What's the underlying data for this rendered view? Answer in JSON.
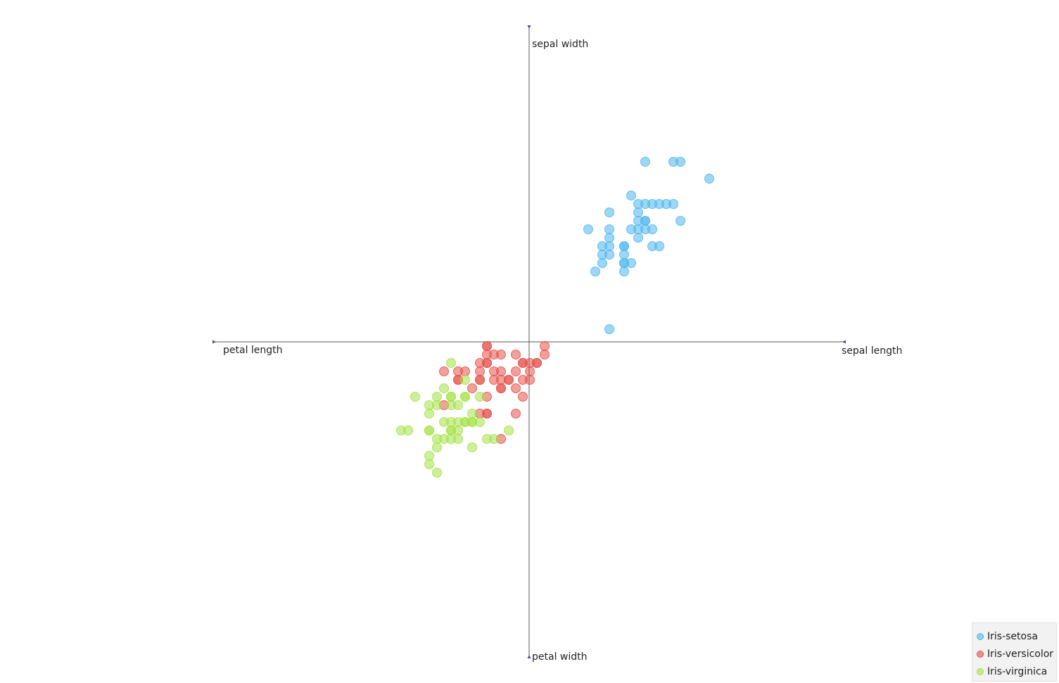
{
  "chart_data": {
    "type": "scatter",
    "title": "",
    "axes": [
      {
        "name": "sepal width",
        "direction": "up"
      },
      {
        "name": "petal width",
        "direction": "down"
      },
      {
        "name": "petal length",
        "direction": "left"
      },
      {
        "name": "sepal length",
        "direction": "right"
      }
    ],
    "series": [
      {
        "name": "Iris-setosa",
        "color": "#4fb7ee",
        "points": [
          [
            165,
            256
          ],
          [
            205,
            256
          ],
          [
            215,
            256
          ],
          [
            256,
            232
          ],
          [
            145,
            208
          ],
          [
            155,
            196
          ],
          [
            165,
            196
          ],
          [
            175,
            196
          ],
          [
            185,
            196
          ],
          [
            195,
            196
          ],
          [
            205,
            196
          ],
          [
            114,
            184
          ],
          [
            155,
            184
          ],
          [
            155,
            172
          ],
          [
            165,
            172
          ],
          [
            165,
            172
          ],
          [
            215,
            172
          ],
          [
            84,
            160
          ],
          [
            114,
            160
          ],
          [
            145,
            160
          ],
          [
            155,
            160
          ],
          [
            165,
            160
          ],
          [
            175,
            160
          ],
          [
            155,
            148
          ],
          [
            114,
            148
          ],
          [
            104,
            136
          ],
          [
            114,
            136
          ],
          [
            135,
            136
          ],
          [
            135,
            136
          ],
          [
            175,
            136
          ],
          [
            185,
            136
          ],
          [
            104,
            124
          ],
          [
            114,
            124
          ],
          [
            135,
            124
          ],
          [
            104,
            112
          ],
          [
            135,
            112
          ],
          [
            135,
            112
          ],
          [
            145,
            112
          ],
          [
            94,
            100
          ],
          [
            135,
            100
          ],
          [
            114,
            18
          ]
        ]
      },
      {
        "name": "Iris-versicolor",
        "color": "#e5524a",
        "points": [
          [
            -60,
            -6
          ],
          [
            -60,
            -6
          ],
          [
            22,
            -6
          ],
          [
            -60,
            -18
          ],
          [
            -50,
            -18
          ],
          [
            -40,
            -18
          ],
          [
            -19,
            -18
          ],
          [
            22,
            -18
          ],
          [
            -60,
            -30
          ],
          [
            -60,
            -30
          ],
          [
            -70,
            -30
          ],
          [
            -9,
            -30
          ],
          [
            -9,
            -30
          ],
          [
            1,
            -30
          ],
          [
            11,
            -30
          ],
          [
            11,
            -30
          ],
          [
            -121,
            -42
          ],
          [
            -101,
            -42
          ],
          [
            -91,
            -42
          ],
          [
            -70,
            -42
          ],
          [
            -50,
            -42
          ],
          [
            -40,
            -42
          ],
          [
            -19,
            -42
          ],
          [
            1,
            -42
          ],
          [
            -101,
            -54
          ],
          [
            -101,
            -54
          ],
          [
            -70,
            -54
          ],
          [
            -70,
            -54
          ],
          [
            -50,
            -54
          ],
          [
            -40,
            -54
          ],
          [
            -29,
            -54
          ],
          [
            -29,
            -54
          ],
          [
            -9,
            -54
          ],
          [
            1,
            -54
          ],
          [
            -81,
            -66
          ],
          [
            -40,
            -66
          ],
          [
            -40,
            -66
          ],
          [
            -19,
            -66
          ],
          [
            -9,
            -78
          ],
          [
            -60,
            -78
          ],
          [
            -121,
            -90
          ],
          [
            -70,
            -102
          ],
          [
            -60,
            -102
          ],
          [
            -60,
            -102
          ],
          [
            -19,
            -102
          ],
          [
            -40,
            -138
          ]
        ]
      },
      {
        "name": "Iris-virginica",
        "color": "#a5e247",
        "points": [
          [
            -111,
            -30
          ],
          [
            -91,
            -54
          ],
          [
            -121,
            -66
          ],
          [
            -162,
            -78
          ],
          [
            -131,
            -78
          ],
          [
            -111,
            -78
          ],
          [
            -111,
            -78
          ],
          [
            -91,
            -78
          ],
          [
            -91,
            -78
          ],
          [
            -70,
            -78
          ],
          [
            -142,
            -90
          ],
          [
            -131,
            -90
          ],
          [
            -111,
            -90
          ],
          [
            -101,
            -90
          ],
          [
            -142,
            -102
          ],
          [
            -81,
            -102
          ],
          [
            -121,
            -114
          ],
          [
            -111,
            -114
          ],
          [
            -101,
            -114
          ],
          [
            -91,
            -114
          ],
          [
            -91,
            -114
          ],
          [
            -81,
            -114
          ],
          [
            -81,
            -114
          ],
          [
            -70,
            -114
          ],
          [
            -182,
            -126
          ],
          [
            -172,
            -126
          ],
          [
            -142,
            -126
          ],
          [
            -142,
            -126
          ],
          [
            -111,
            -126
          ],
          [
            -111,
            -126
          ],
          [
            -101,
            -126
          ],
          [
            -29,
            -126
          ],
          [
            -131,
            -138
          ],
          [
            -121,
            -138
          ],
          [
            -111,
            -138
          ],
          [
            -101,
            -138
          ],
          [
            -60,
            -138
          ],
          [
            -50,
            -138
          ],
          [
            -131,
            -150
          ],
          [
            -81,
            -150
          ],
          [
            -142,
            -162
          ],
          [
            -142,
            -174
          ],
          [
            -131,
            -186
          ]
        ]
      }
    ],
    "xlim": [
      -446,
      446
    ],
    "ylim": [
      -446,
      446
    ],
    "grid": false,
    "legend": "bottom-right"
  }
}
